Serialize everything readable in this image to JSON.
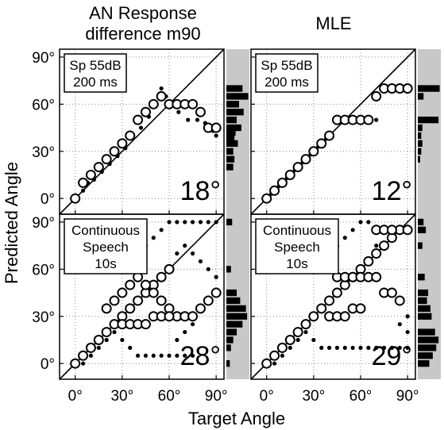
{
  "figure": {
    "y_axis_label": "Predicted Angle",
    "x_axis_label": "Target Angle",
    "column_titles": [
      {
        "line1": "AN Response",
        "line2": "difference m90"
      },
      {
        "line1": "MLE",
        "line2": ""
      }
    ]
  },
  "chart_data": [
    {
      "type": "scatter",
      "panel": "AN Response difference m90 — Sp 55dB 200 ms",
      "box_label": [
        "Sp 55dB",
        "200 ms"
      ],
      "error_label": "18°",
      "xlim": [
        -10,
        95
      ],
      "ylim": [
        -10,
        95
      ],
      "ticks": [
        0,
        30,
        60,
        90
      ],
      "tick_labels": [
        "0°",
        "30°",
        "60°",
        "90°"
      ],
      "grid": true,
      "diagonal": true,
      "circles": [
        [
          0,
          0
        ],
        [
          5,
          10
        ],
        [
          10,
          15
        ],
        [
          15,
          20
        ],
        [
          20,
          25
        ],
        [
          25,
          30
        ],
        [
          30,
          35
        ],
        [
          35,
          40
        ],
        [
          40,
          50
        ],
        [
          45,
          55
        ],
        [
          50,
          60
        ],
        [
          55,
          65
        ],
        [
          60,
          60
        ],
        [
          65,
          60
        ],
        [
          70,
          60
        ],
        [
          75,
          60
        ],
        [
          80,
          55
        ],
        [
          85,
          45
        ],
        [
          90,
          45
        ]
      ],
      "dots": [
        [
          5,
          5
        ],
        [
          8,
          10
        ],
        [
          12,
          12
        ],
        [
          17,
          17
        ],
        [
          22,
          22
        ],
        [
          27,
          27
        ],
        [
          32,
          32
        ],
        [
          37,
          40
        ],
        [
          42,
          45
        ],
        [
          47,
          52
        ],
        [
          52,
          60
        ],
        [
          55,
          70
        ],
        [
          58,
          65
        ],
        [
          62,
          60
        ],
        [
          66,
          55
        ],
        [
          72,
          50
        ],
        [
          78,
          50
        ],
        [
          83,
          48
        ],
        [
          88,
          43
        ],
        [
          90,
          40
        ]
      ],
      "marginal_bars": [
        {
          "y": 70,
          "width": 0.7
        },
        {
          "y": 65,
          "width": 0.95
        },
        {
          "y": 60,
          "width": 0.55
        },
        {
          "y": 55,
          "width": 0.75
        },
        {
          "y": 50,
          "width": 0.45
        },
        {
          "y": 45,
          "width": 0.65
        },
        {
          "y": 42,
          "width": 0.4
        },
        {
          "y": 38,
          "width": 0.35
        },
        {
          "y": 35,
          "width": 0.5
        },
        {
          "y": 30,
          "width": 0.3
        },
        {
          "y": 25,
          "width": 0.35
        },
        {
          "y": 20,
          "width": 0.3
        }
      ]
    },
    {
      "type": "scatter",
      "panel": "MLE — Sp 55dB 200 ms",
      "box_label": [
        "Sp 55dB",
        "200 ms"
      ],
      "error_label": "12°",
      "xlim": [
        -10,
        95
      ],
      "ylim": [
        -10,
        95
      ],
      "ticks": [
        0,
        30,
        60,
        90
      ],
      "tick_labels": [
        "0°",
        "30°",
        "60°",
        "90°"
      ],
      "grid": true,
      "diagonal": true,
      "circles": [
        [
          0,
          0
        ],
        [
          5,
          5
        ],
        [
          10,
          10
        ],
        [
          15,
          15
        ],
        [
          20,
          20
        ],
        [
          25,
          25
        ],
        [
          30,
          30
        ],
        [
          35,
          35
        ],
        [
          40,
          40
        ],
        [
          45,
          50
        ],
        [
          50,
          50
        ],
        [
          55,
          50
        ],
        [
          60,
          50
        ],
        [
          65,
          50
        ],
        [
          70,
          65
        ],
        [
          75,
          70
        ],
        [
          80,
          70
        ],
        [
          85,
          70
        ],
        [
          90,
          70
        ]
      ],
      "dots": [
        [
          3,
          3
        ],
        [
          8,
          8
        ],
        [
          13,
          13
        ],
        [
          18,
          18
        ],
        [
          23,
          23
        ],
        [
          28,
          28
        ],
        [
          33,
          33
        ],
        [
          38,
          38
        ],
        [
          65,
          50
        ],
        [
          70,
          50
        ]
      ],
      "marginal_bars": [
        {
          "y": 70,
          "width": 0.95
        },
        {
          "y": 65,
          "width": 0.25
        },
        {
          "y": 50,
          "width": 0.9
        },
        {
          "y": 45,
          "width": 0.2
        },
        {
          "y": 40,
          "width": 0.15
        },
        {
          "y": 35,
          "width": 0.2
        },
        {
          "y": 30,
          "width": 0.15
        },
        {
          "y": 25,
          "width": 0.1
        }
      ]
    },
    {
      "type": "scatter",
      "panel": "AN Response difference m90 — Continuous Speech 10s",
      "box_label": [
        "Continuous",
        "Speech",
        "10s"
      ],
      "error_label": "28°",
      "xlim": [
        -10,
        95
      ],
      "ylim": [
        -10,
        95
      ],
      "ticks": [
        0,
        30,
        60,
        90
      ],
      "tick_labels": [
        "0°",
        "30°",
        "60°",
        "90°"
      ],
      "grid": true,
      "diagonal": true,
      "circles": [
        [
          0,
          0
        ],
        [
          5,
          5
        ],
        [
          10,
          10
        ],
        [
          15,
          15
        ],
        [
          20,
          20
        ],
        [
          25,
          25
        ],
        [
          30,
          30
        ],
        [
          35,
          35
        ],
        [
          40,
          40
        ],
        [
          45,
          45
        ],
        [
          50,
          50
        ],
        [
          55,
          55
        ],
        [
          60,
          60
        ],
        [
          20,
          35
        ],
        [
          25,
          40
        ],
        [
          30,
          45
        ],
        [
          35,
          50
        ],
        [
          40,
          55
        ],
        [
          45,
          50
        ],
        [
          50,
          45
        ],
        [
          55,
          40
        ],
        [
          60,
          35
        ],
        [
          65,
          30
        ],
        [
          70,
          30
        ],
        [
          75,
          30
        ],
        [
          80,
          35
        ],
        [
          85,
          40
        ],
        [
          90,
          45
        ],
        [
          30,
          25
        ],
        [
          35,
          25
        ],
        [
          40,
          25
        ],
        [
          45,
          25
        ],
        [
          50,
          30
        ],
        [
          55,
          30
        ],
        [
          60,
          30
        ]
      ],
      "dots": [
        [
          5,
          0
        ],
        [
          10,
          5
        ],
        [
          15,
          10
        ],
        [
          20,
          15
        ],
        [
          25,
          20
        ],
        [
          30,
          15
        ],
        [
          35,
          10
        ],
        [
          40,
          5
        ],
        [
          45,
          5
        ],
        [
          50,
          5
        ],
        [
          55,
          5
        ],
        [
          60,
          5
        ],
        [
          65,
          5
        ],
        [
          70,
          5
        ],
        [
          75,
          5
        ],
        [
          30,
          60
        ],
        [
          35,
          65
        ],
        [
          40,
          70
        ],
        [
          45,
          75
        ],
        [
          50,
          80
        ],
        [
          55,
          85
        ],
        [
          60,
          90
        ],
        [
          65,
          90
        ],
        [
          70,
          90
        ],
        [
          75,
          90
        ],
        [
          80,
          90
        ],
        [
          85,
          90
        ],
        [
          90,
          90
        ],
        [
          65,
          70
        ],
        [
          70,
          75
        ],
        [
          75,
          70
        ],
        [
          80,
          65
        ],
        [
          85,
          60
        ],
        [
          90,
          55
        ],
        [
          65,
          15
        ],
        [
          70,
          20
        ],
        [
          75,
          25
        ]
      ],
      "marginal_bars": [
        {
          "y": 90,
          "width": 0.25
        },
        {
          "y": 60,
          "width": 0.2
        },
        {
          "y": 45,
          "width": 0.45
        },
        {
          "y": 40,
          "width": 0.6
        },
        {
          "y": 35,
          "width": 0.85
        },
        {
          "y": 30,
          "width": 0.9
        },
        {
          "y": 25,
          "width": 0.7
        },
        {
          "y": 20,
          "width": 0.45
        },
        {
          "y": 15,
          "width": 0.3
        },
        {
          "y": 10,
          "width": 0.2
        },
        {
          "y": 0,
          "width": 0.15
        }
      ]
    },
    {
      "type": "scatter",
      "panel": "MLE — Continuous Speech 10s",
      "box_label": [
        "Continuous",
        "Speech",
        "10s"
      ],
      "error_label": "29°",
      "xlim": [
        -10,
        95
      ],
      "ylim": [
        -10,
        95
      ],
      "ticks": [
        0,
        30,
        60,
        90
      ],
      "tick_labels": [
        "0°",
        "30°",
        "60°",
        "90°"
      ],
      "grid": true,
      "diagonal": true,
      "circles": [
        [
          0,
          0
        ],
        [
          5,
          5
        ],
        [
          10,
          10
        ],
        [
          15,
          15
        ],
        [
          20,
          20
        ],
        [
          25,
          25
        ],
        [
          30,
          30
        ],
        [
          35,
          35
        ],
        [
          40,
          40
        ],
        [
          45,
          45
        ],
        [
          50,
          50
        ],
        [
          55,
          55
        ],
        [
          60,
          60
        ],
        [
          65,
          65
        ],
        [
          70,
          70
        ],
        [
          75,
          75
        ],
        [
          80,
          80
        ],
        [
          85,
          85
        ],
        [
          90,
          85
        ],
        [
          70,
          85
        ],
        [
          75,
          85
        ],
        [
          80,
          85
        ],
        [
          45,
          55
        ],
        [
          50,
          55
        ],
        [
          55,
          55
        ],
        [
          60,
          55
        ],
        [
          65,
          55
        ],
        [
          70,
          55
        ],
        [
          75,
          45
        ],
        [
          80,
          45
        ],
        [
          85,
          40
        ],
        [
          40,
          30
        ],
        [
          45,
          30
        ],
        [
          50,
          30
        ],
        [
          55,
          35
        ],
        [
          60,
          35
        ]
      ],
      "dots": [
        [
          5,
          0
        ],
        [
          10,
          5
        ],
        [
          15,
          10
        ],
        [
          20,
          15
        ],
        [
          25,
          20
        ],
        [
          30,
          15
        ],
        [
          35,
          10
        ],
        [
          40,
          10
        ],
        [
          45,
          10
        ],
        [
          50,
          10
        ],
        [
          55,
          10
        ],
        [
          60,
          10
        ],
        [
          65,
          10
        ],
        [
          70,
          10
        ],
        [
          75,
          10
        ],
        [
          80,
          10
        ],
        [
          85,
          10
        ],
        [
          90,
          10
        ],
        [
          30,
          60
        ],
        [
          35,
          65
        ],
        [
          40,
          70
        ],
        [
          45,
          75
        ],
        [
          50,
          80
        ],
        [
          55,
          85
        ],
        [
          60,
          90
        ],
        [
          65,
          90
        ],
        [
          70,
          75
        ],
        [
          90,
          30
        ],
        [
          90,
          20
        ],
        [
          85,
          25
        ]
      ],
      "marginal_bars": [
        {
          "y": 90,
          "width": 0.25
        },
        {
          "y": 85,
          "width": 0.35
        },
        {
          "y": 75,
          "width": 0.2
        },
        {
          "y": 55,
          "width": 0.3
        },
        {
          "y": 45,
          "width": 0.45
        },
        {
          "y": 40,
          "width": 0.4
        },
        {
          "y": 35,
          "width": 0.55
        },
        {
          "y": 30,
          "width": 0.6
        },
        {
          "y": 20,
          "width": 0.75
        },
        {
          "y": 15,
          "width": 0.9
        },
        {
          "y": 10,
          "width": 0.8
        },
        {
          "y": 5,
          "width": 0.65
        },
        {
          "y": 0,
          "width": 0.5
        }
      ]
    }
  ]
}
